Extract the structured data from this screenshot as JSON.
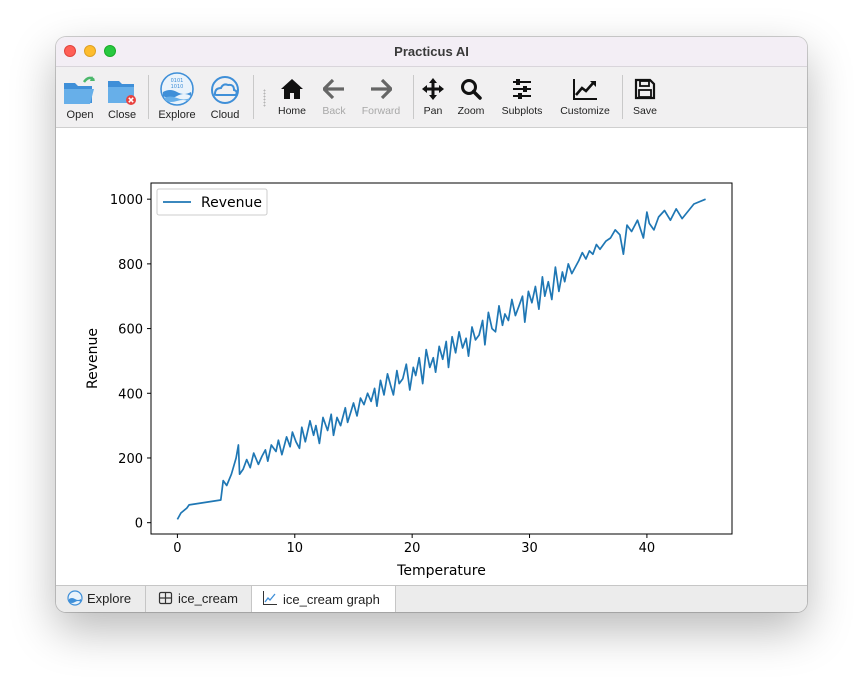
{
  "window": {
    "title": "Practicus AI"
  },
  "toolbar": {
    "open_label": "Open",
    "close_label": "Close",
    "explore_label": "Explore",
    "cloud_label": "Cloud",
    "home_label": "Home",
    "back_label": "Back",
    "forward_label": "Forward",
    "pan_label": "Pan",
    "zoom_label": "Zoom",
    "subplots_label": "Subplots",
    "customize_label": "Customize",
    "save_label": "Save",
    "explore_icon_text": "0101 1010 01010"
  },
  "tabs": [
    {
      "label": "Explore",
      "icon": "globe-icon",
      "active": false
    },
    {
      "label": "ice_cream",
      "icon": "table-icon",
      "active": false
    },
    {
      "label": "ice_cream graph",
      "icon": "line-chart-icon",
      "active": true
    }
  ],
  "colors": {
    "series": "#1f77b4",
    "toolbar": "#f1f0f1",
    "titlebar": "#f3eef5"
  },
  "chart_data": {
    "type": "line",
    "title": "",
    "xlabel": "Temperature",
    "ylabel": "Revenue",
    "xlim": [
      -2.25,
      47.25
    ],
    "ylim": [
      -35,
      1050
    ],
    "xticks": [
      0,
      10,
      20,
      30,
      40
    ],
    "yticks": [
      0,
      200,
      400,
      600,
      800,
      1000
    ],
    "legend": "upper-left",
    "grid": false,
    "series": [
      {
        "name": "Revenue",
        "x": [
          0.0,
          0.3,
          0.8,
          1.0,
          3.7,
          3.9,
          4.2,
          4.6,
          5.0,
          5.2,
          5.3,
          5.6,
          5.9,
          6.2,
          6.5,
          6.9,
          7.2,
          7.5,
          7.7,
          8.0,
          8.4,
          8.6,
          8.9,
          9.3,
          9.6,
          9.8,
          10.1,
          10.4,
          10.6,
          10.9,
          11.3,
          11.6,
          11.8,
          12.1,
          12.4,
          12.8,
          13.1,
          13.3,
          13.6,
          13.9,
          14.3,
          14.5,
          14.8,
          15.0,
          15.3,
          15.6,
          15.9,
          16.2,
          16.5,
          16.8,
          17.0,
          17.3,
          17.6,
          17.9,
          18.2,
          18.4,
          18.7,
          18.9,
          19.2,
          19.5,
          19.8,
          20.1,
          20.3,
          20.6,
          20.9,
          21.2,
          21.5,
          21.8,
          22.0,
          22.3,
          22.6,
          22.9,
          23.1,
          23.4,
          23.7,
          24.0,
          24.3,
          24.6,
          24.8,
          25.1,
          25.4,
          25.7,
          26.0,
          26.2,
          26.5,
          26.8,
          27.1,
          27.4,
          27.7,
          27.9,
          28.2,
          28.5,
          28.8,
          29.1,
          29.4,
          29.6,
          29.9,
          30.2,
          30.5,
          30.8,
          31.1,
          31.3,
          31.6,
          31.9,
          32.2,
          32.5,
          32.8,
          33.0,
          33.3,
          33.6,
          33.9,
          34.2,
          34.5,
          34.8,
          35.1,
          35.4,
          35.7,
          36.0,
          36.5,
          36.9,
          37.3,
          37.7,
          38.0,
          38.3,
          38.7,
          39.2,
          39.7,
          40.0,
          40.2,
          40.6,
          41.0,
          41.5,
          42.0,
          42.5,
          43.0,
          44.0,
          45.0
        ],
        "y": [
          10,
          30,
          45,
          55,
          70,
          130,
          115,
          150,
          200,
          240,
          150,
          165,
          195,
          170,
          215,
          180,
          205,
          225,
          190,
          240,
          220,
          255,
          210,
          265,
          235,
          280,
          250,
          230,
          295,
          250,
          315,
          270,
          300,
          245,
          325,
          285,
          335,
          270,
          325,
          300,
          355,
          310,
          345,
          370,
          330,
          385,
          365,
          400,
          375,
          415,
          360,
          440,
          395,
          460,
          420,
          395,
          470,
          430,
          445,
          490,
          410,
          480,
          455,
          510,
          430,
          535,
          480,
          510,
          465,
          545,
          505,
          560,
          480,
          575,
          525,
          590,
          540,
          570,
          515,
          605,
          565,
          580,
          625,
          550,
          650,
          600,
          590,
          670,
          610,
          645,
          625,
          690,
          640,
          670,
          700,
          620,
          715,
          680,
          730,
          660,
          760,
          700,
          745,
          690,
          790,
          715,
          775,
          745,
          800,
          770,
          790,
          810,
          835,
          815,
          840,
          830,
          860,
          845,
          870,
          880,
          905,
          890,
          830,
          920,
          900,
          935,
          880,
          960,
          925,
          905,
          945,
          965,
          935,
          970,
          940,
          985,
          1000
        ]
      }
    ]
  }
}
